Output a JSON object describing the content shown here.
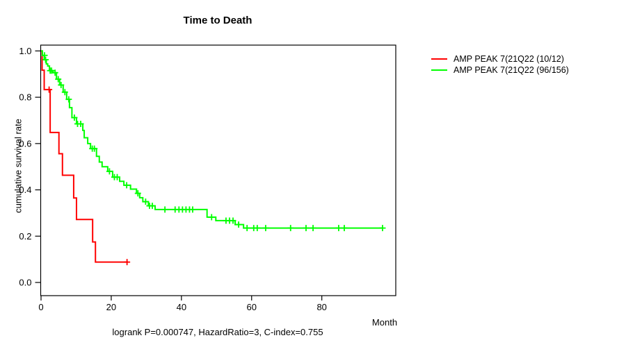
{
  "chart_data": {
    "type": "line",
    "subtype": "kaplan-meier-step-survival",
    "title": "Time to Death",
    "xlabel": "Month",
    "ylabel": "cumulative survival rate",
    "annotation": "logrank P=0.000747, HazardRatio=3, C-index=0.755",
    "grid": false,
    "legend_position": "top-right-outside",
    "xticks": [
      0,
      20,
      40,
      60,
      80
    ],
    "xtick_labels": [
      "0",
      "20",
      "40",
      "60",
      "80"
    ],
    "yticks": [
      0.0,
      0.2,
      0.4,
      0.6,
      0.8,
      1.0
    ],
    "ytick_labels": [
      "0.0",
      "0.2",
      "0.4",
      "0.6",
      "0.8",
      "1.0"
    ],
    "xlim": [
      0,
      101
    ],
    "ylim": [
      0,
      1.04
    ],
    "axis_color": "#000000",
    "series": [
      {
        "name": "AMP PEAK 7(21Q22 (10/12)",
        "color": "#ff0000",
        "steps": [
          [
            0,
            1.0
          ],
          [
            0.3,
            0.917
          ],
          [
            0.9,
            0.833
          ],
          [
            2.6,
            0.648
          ],
          [
            5.1,
            0.556
          ],
          [
            6.1,
            0.463
          ],
          [
            9.3,
            0.365
          ],
          [
            10.1,
            0.272
          ],
          [
            14.7,
            0.175
          ],
          [
            15.5,
            0.088
          ]
        ],
        "end_time": 24.8,
        "censors": [
          [
            2.3,
            0.833
          ],
          [
            24.5,
            0.088
          ]
        ]
      },
      {
        "name": "AMP PEAK 7(21Q22 (96/156)",
        "color": "#00ff00",
        "steps": [
          [
            0,
            1.0
          ],
          [
            0.4,
            0.981
          ],
          [
            0.9,
            0.962
          ],
          [
            1.5,
            0.944
          ],
          [
            1.9,
            0.935
          ],
          [
            2.4,
            0.915
          ],
          [
            3.4,
            0.906
          ],
          [
            4.4,
            0.878
          ],
          [
            5.3,
            0.853
          ],
          [
            6.3,
            0.822
          ],
          [
            7.3,
            0.791
          ],
          [
            8.1,
            0.755
          ],
          [
            8.8,
            0.712
          ],
          [
            10.1,
            0.685
          ],
          [
            11.9,
            0.657
          ],
          [
            12.3,
            0.625
          ],
          [
            13.3,
            0.6
          ],
          [
            14.1,
            0.578
          ],
          [
            15.8,
            0.545
          ],
          [
            16.6,
            0.52
          ],
          [
            17.4,
            0.5
          ],
          [
            19.0,
            0.48
          ],
          [
            20.4,
            0.455
          ],
          [
            22.4,
            0.437
          ],
          [
            23.6,
            0.42
          ],
          [
            25.5,
            0.403
          ],
          [
            27.2,
            0.385
          ],
          [
            28.1,
            0.366
          ],
          [
            29.0,
            0.349
          ],
          [
            30.6,
            0.331
          ],
          [
            32.5,
            0.315
          ],
          [
            47.3,
            0.282
          ],
          [
            49.8,
            0.267
          ],
          [
            55.3,
            0.25
          ],
          [
            57.7,
            0.235
          ]
        ],
        "end_time": 97.4,
        "censors": [
          [
            1.0,
            0.981
          ],
          [
            1.3,
            0.962
          ],
          [
            2.6,
            0.915
          ],
          [
            3.0,
            0.915
          ],
          [
            4.0,
            0.906
          ],
          [
            4.9,
            0.878
          ],
          [
            5.7,
            0.853
          ],
          [
            6.8,
            0.822
          ],
          [
            7.9,
            0.791
          ],
          [
            9.5,
            0.712
          ],
          [
            10.4,
            0.685
          ],
          [
            11.3,
            0.685
          ],
          [
            14.6,
            0.578
          ],
          [
            15.2,
            0.578
          ],
          [
            19.5,
            0.48
          ],
          [
            20.9,
            0.455
          ],
          [
            21.7,
            0.455
          ],
          [
            24.4,
            0.42
          ],
          [
            27.6,
            0.385
          ],
          [
            29.8,
            0.349
          ],
          [
            30.9,
            0.331
          ],
          [
            31.7,
            0.331
          ],
          [
            35.3,
            0.315
          ],
          [
            38.2,
            0.315
          ],
          [
            39.3,
            0.315
          ],
          [
            40.3,
            0.315
          ],
          [
            41.3,
            0.315
          ],
          [
            42.3,
            0.315
          ],
          [
            43.2,
            0.315
          ],
          [
            48.6,
            0.282
          ],
          [
            52.7,
            0.267
          ],
          [
            53.7,
            0.267
          ],
          [
            54.7,
            0.267
          ],
          [
            56.3,
            0.25
          ],
          [
            58.7,
            0.235
          ],
          [
            60.6,
            0.235
          ],
          [
            61.6,
            0.235
          ],
          [
            64.0,
            0.235
          ],
          [
            71.1,
            0.235
          ],
          [
            75.5,
            0.235
          ],
          [
            77.5,
            0.235
          ],
          [
            84.8,
            0.235
          ],
          [
            86.4,
            0.235
          ],
          [
            97.3,
            0.235
          ]
        ]
      }
    ]
  }
}
